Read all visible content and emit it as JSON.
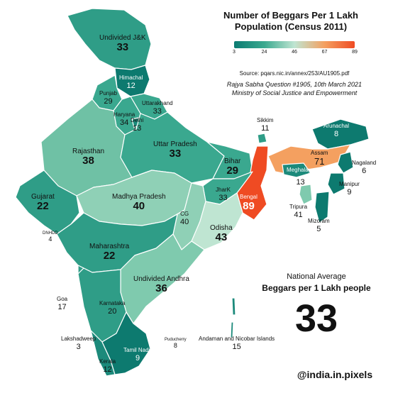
{
  "title": "Number of Beggars Per 1 Lakh Population (Census 2011)",
  "legend": {
    "ticks": [
      "3",
      "24",
      "46",
      "67",
      "89"
    ],
    "colors": [
      "#0b7b72",
      "#3aa98f",
      "#bfe5d2",
      "#f4a060",
      "#ef4b23"
    ]
  },
  "source": "Source: pqars.nic.in/annex/253/AU1905.pdf",
  "reference_line1": "Rajya Sabha Question #1905, 10th March 2021",
  "reference_line2": "Ministry of Social Justice and Empowerment",
  "national": {
    "label1": "National Average",
    "label2": "Beggars per 1 Lakh people",
    "value": "33"
  },
  "credit": "@india.in.pixels",
  "regions": [
    {
      "name": "Undivided J&K",
      "value": "33"
    },
    {
      "name": "Himachal",
      "value": "12"
    },
    {
      "name": "Punjab",
      "value": "29"
    },
    {
      "name": "Uttarakhand",
      "value": "33"
    },
    {
      "name": "Haryana",
      "value": "34"
    },
    {
      "name": "Delhi",
      "value": "13"
    },
    {
      "name": "Rajasthan",
      "value": "38"
    },
    {
      "name": "Uttar Pradesh",
      "value": "33"
    },
    {
      "name": "Bihar",
      "value": "29"
    },
    {
      "name": "Sikkim",
      "value": "11"
    },
    {
      "name": "Arunachal",
      "value": "8"
    },
    {
      "name": "Assam",
      "value": "71"
    },
    {
      "name": "Nagaland",
      "value": "6"
    },
    {
      "name": "Meghalaya",
      "value": "13"
    },
    {
      "name": "Manipur",
      "value": "9"
    },
    {
      "name": "Tripura",
      "value": "41"
    },
    {
      "name": "Mizoram",
      "value": "5"
    },
    {
      "name": "JharK",
      "value": "33"
    },
    {
      "name": "Bengal",
      "value": "89"
    },
    {
      "name": "Gujarat",
      "value": "22"
    },
    {
      "name": "Madhya Pradesh",
      "value": "40"
    },
    {
      "name": "CG",
      "value": "40"
    },
    {
      "name": "Odisha",
      "value": "43"
    },
    {
      "name": "DNHDD",
      "value": "4"
    },
    {
      "name": "Maharashtra",
      "value": "22"
    },
    {
      "name": "Undivided Andhra",
      "value": "36"
    },
    {
      "name": "Goa",
      "value": "17"
    },
    {
      "name": "Karnataka",
      "value": "20"
    },
    {
      "name": "Lakshadweep",
      "value": "3"
    },
    {
      "name": "Puducherry",
      "value": "8"
    },
    {
      "name": "Andaman and Nicobar Islands",
      "value": "15"
    },
    {
      "name": "Tamil Nadu",
      "value": "9"
    },
    {
      "name": "Kerala",
      "value": "12"
    }
  ]
}
